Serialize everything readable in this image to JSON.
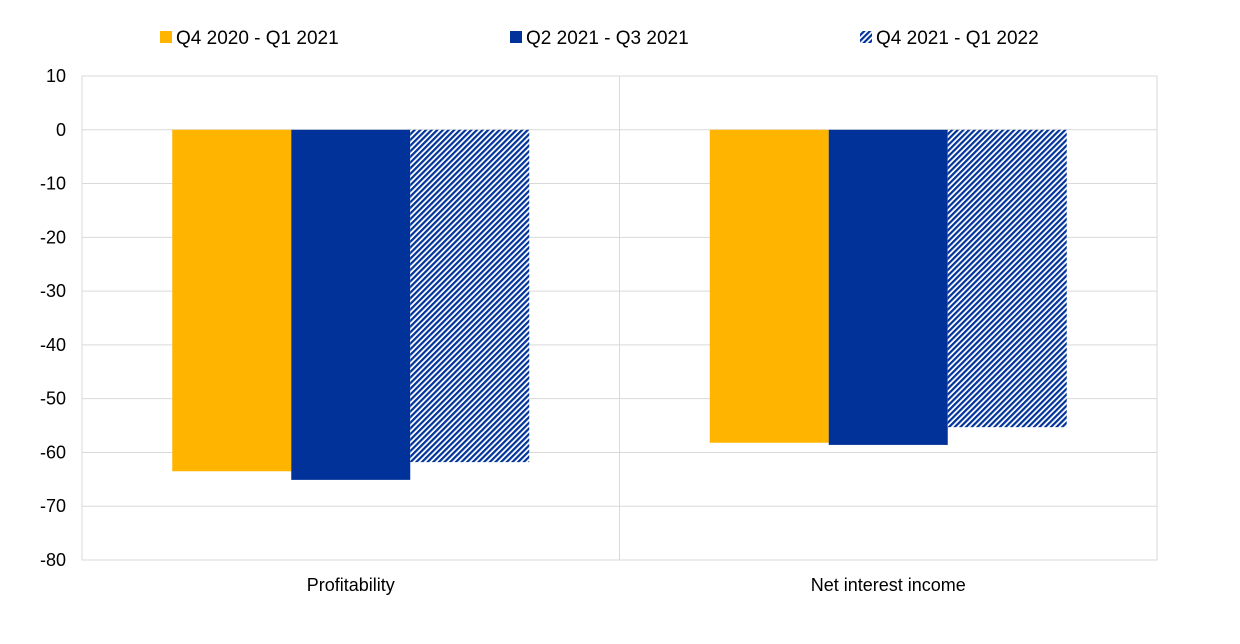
{
  "chart_data": {
    "type": "bar",
    "categories": [
      "Profitability",
      "Net interest income"
    ],
    "series": [
      {
        "name": "Q4 2020 - Q1 2021",
        "values": [
          -63.5,
          -58.2
        ],
        "color": "#FFB400",
        "pattern": "solid"
      },
      {
        "name": "Q2 2021 - Q3 2021",
        "values": [
          -65.1,
          -58.6
        ],
        "color": "#003299",
        "pattern": "solid"
      },
      {
        "name": "Q4 2021 - Q1 2022",
        "values": [
          -61.8,
          -55.3
        ],
        "color": "#003299",
        "pattern": "diagonal-hatch"
      }
    ],
    "ylim": [
      -80,
      10
    ],
    "yticks": [
      10,
      0,
      -10,
      -20,
      -30,
      -40,
      -50,
      -60,
      -70,
      -80
    ],
    "grid": true,
    "legend_position": "top"
  }
}
